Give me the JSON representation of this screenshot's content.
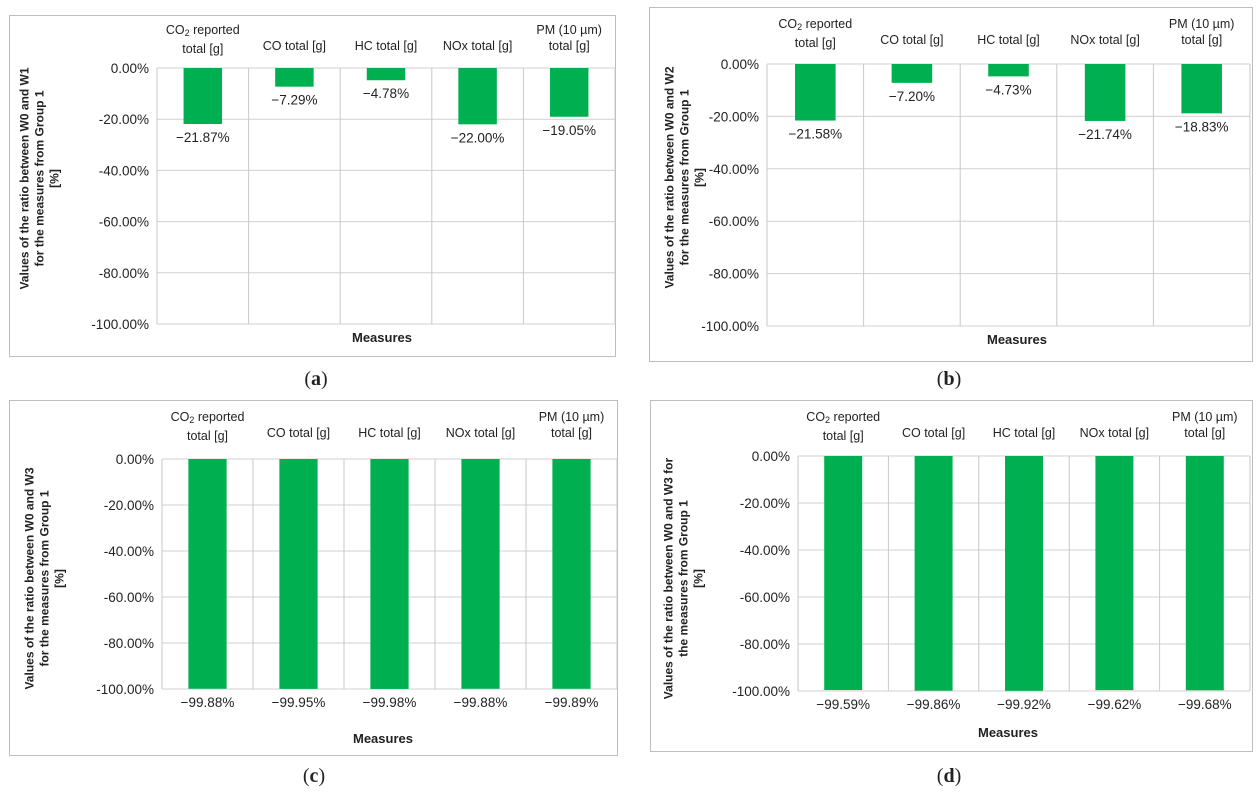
{
  "panel_letters": [
    "a",
    "b",
    "c",
    "d"
  ],
  "chart_data": [
    {
      "type": "bar",
      "panel": "a",
      "categories": [
        "CO2 reported total [g]",
        "CO total [g]",
        "HC total [g]",
        "NOx total [g]",
        "PM (10 µm) total [g]"
      ],
      "category_lines": [
        [
          "CO2 reported",
          "total [g]"
        ],
        [
          "CO total [g]"
        ],
        [
          "HC total [g]"
        ],
        [
          "NOx total [g]"
        ],
        [
          "PM (10 µm)",
          "total [g]"
        ]
      ],
      "values": [
        -21.87,
        -7.29,
        -4.78,
        -22.0,
        -19.05
      ],
      "data_labels": [
        "−21.87%",
        "−7.29%",
        "−4.78%",
        "−22.00%",
        "−19.05%"
      ],
      "ylim": [
        -100,
        0
      ],
      "yticks": [
        "0.00%",
        "-20.00%",
        "-40.00%",
        "-60.00%",
        "-80.00%",
        "-100.00%"
      ],
      "ylabel_lines": [
        "Values of the ratio between W0 and W1",
        "for the measures from Group 1",
        "[%]"
      ],
      "xlabel": "Measures",
      "bar_color": "#00b050"
    },
    {
      "type": "bar",
      "panel": "b",
      "categories": [
        "CO2 reported total [g]",
        "CO total [g]",
        "HC total [g]",
        "NOx total [g]",
        "PM (10 µm) total [g]"
      ],
      "category_lines": [
        [
          "CO2 reported",
          "total [g]"
        ],
        [
          "CO total [g]"
        ],
        [
          "HC total [g]"
        ],
        [
          "NOx total [g]"
        ],
        [
          "PM (10 µm)",
          "total [g]"
        ]
      ],
      "values": [
        -21.58,
        -7.2,
        -4.73,
        -21.74,
        -18.83
      ],
      "data_labels": [
        "−21.58%",
        "−7.20%",
        "−4.73%",
        "−21.74%",
        "−18.83%"
      ],
      "ylim": [
        -100,
        0
      ],
      "yticks": [
        "0.00%",
        "-20.00%",
        "-40.00%",
        "-60.00%",
        "-80.00%",
        "-100.00%"
      ],
      "ylabel_lines": [
        "Values of the ratio between W0 and W2",
        "for the measures from Group 1",
        "[%]"
      ],
      "xlabel": "Measures",
      "bar_color": "#00b050"
    },
    {
      "type": "bar",
      "panel": "c",
      "categories": [
        "CO2 reported total [g]",
        "CO total [g]",
        "HC total [g]",
        "NOx total [g]",
        "PM (10 µm) total [g]"
      ],
      "category_lines": [
        [
          "CO2 reported",
          "total [g]"
        ],
        [
          "CO total [g]"
        ],
        [
          "HC total [g]"
        ],
        [
          "NOx total [g]"
        ],
        [
          "PM (10 µm)",
          "total [g]"
        ]
      ],
      "values": [
        -99.88,
        -99.95,
        -99.98,
        -99.88,
        -99.89
      ],
      "data_labels": [
        "−99.88%",
        "−99.95%",
        "−99.98%",
        "−99.88%",
        "−99.89%"
      ],
      "ylim": [
        -100,
        0
      ],
      "yticks": [
        "0.00%",
        "-20.00%",
        "-40.00%",
        "-60.00%",
        "-80.00%",
        "-100.00%"
      ],
      "ylabel_lines": [
        "Values of the ratio between W0 and W3",
        "for the measures from Group 1",
        "[%]"
      ],
      "xlabel": "Measures",
      "bar_color": "#00b050"
    },
    {
      "type": "bar",
      "panel": "d",
      "categories": [
        "CO2 reported total [g]",
        "CO total [g]",
        "HC total [g]",
        "NOx total [g]",
        "PM (10 µm) total [g]"
      ],
      "category_lines": [
        [
          "CO2 reported",
          "total [g]"
        ],
        [
          "CO total [g]"
        ],
        [
          "HC total [g]"
        ],
        [
          "NOx total [g]"
        ],
        [
          "PM (10 µm)",
          "total [g]"
        ]
      ],
      "values": [
        -99.59,
        -99.86,
        -99.92,
        -99.62,
        -99.68
      ],
      "data_labels": [
        "−99.59%",
        "−99.86%",
        "−99.92%",
        "−99.62%",
        "−99.68%"
      ],
      "ylim": [
        -100,
        0
      ],
      "yticks": [
        "0.00%",
        "-20.00%",
        "-40.00%",
        "-60.00%",
        "-80.00%",
        "-100.00%"
      ],
      "ylabel_lines": [
        "Values of the ratio between W0 and W3 for",
        "the measures from Group 1",
        "[%]"
      ],
      "xlabel": "Measures",
      "bar_color": "#00b050"
    }
  ]
}
